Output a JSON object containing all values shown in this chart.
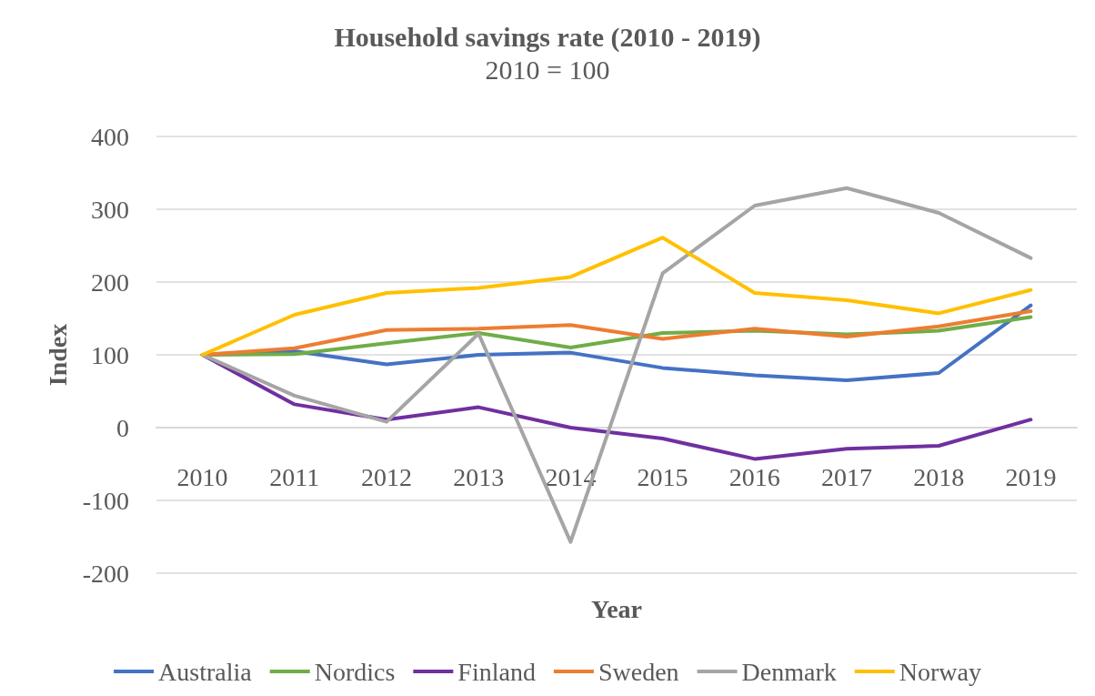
{
  "chart_data": {
    "type": "line",
    "title": "Household savings rate (2010 - 2019)",
    "subtitle": "2010 = 100",
    "xlabel": "Year",
    "ylabel": "Index",
    "categories": [
      "2010",
      "2011",
      "2012",
      "2013",
      "2014",
      "2015",
      "2016",
      "2017",
      "2018",
      "2019"
    ],
    "series": [
      {
        "name": "Australia",
        "color": "#4472c4",
        "values": [
          100,
          105,
          87,
          100,
          103,
          82,
          72,
          65,
          75,
          168
        ]
      },
      {
        "name": "Nordics",
        "color": "#70ad47",
        "values": [
          100,
          101,
          116,
          130,
          110,
          130,
          133,
          128,
          133,
          152
        ]
      },
      {
        "name": "Finland",
        "color": "#7030a0",
        "values": [
          100,
          32,
          11,
          28,
          0,
          -15,
          -43,
          -29,
          -25,
          11
        ]
      },
      {
        "name": "Sweden",
        "color": "#ed7d31",
        "values": [
          100,
          109,
          134,
          136,
          141,
          122,
          136,
          125,
          139,
          160
        ]
      },
      {
        "name": "Denmark",
        "color": "#a5a5a5",
        "values": [
          100,
          44,
          8,
          129,
          -157,
          212,
          305,
          329,
          295,
          233
        ]
      },
      {
        "name": "Norway",
        "color": "#ffc000",
        "values": [
          100,
          155,
          185,
          192,
          207,
          261,
          185,
          175,
          157,
          189
        ]
      }
    ],
    "ylim": [
      -200,
      400
    ],
    "yticks": [
      -200,
      -100,
      0,
      100,
      200,
      300,
      400
    ],
    "grid": "y",
    "legend": "bottom",
    "marker": "none",
    "line_style": "solid"
  }
}
